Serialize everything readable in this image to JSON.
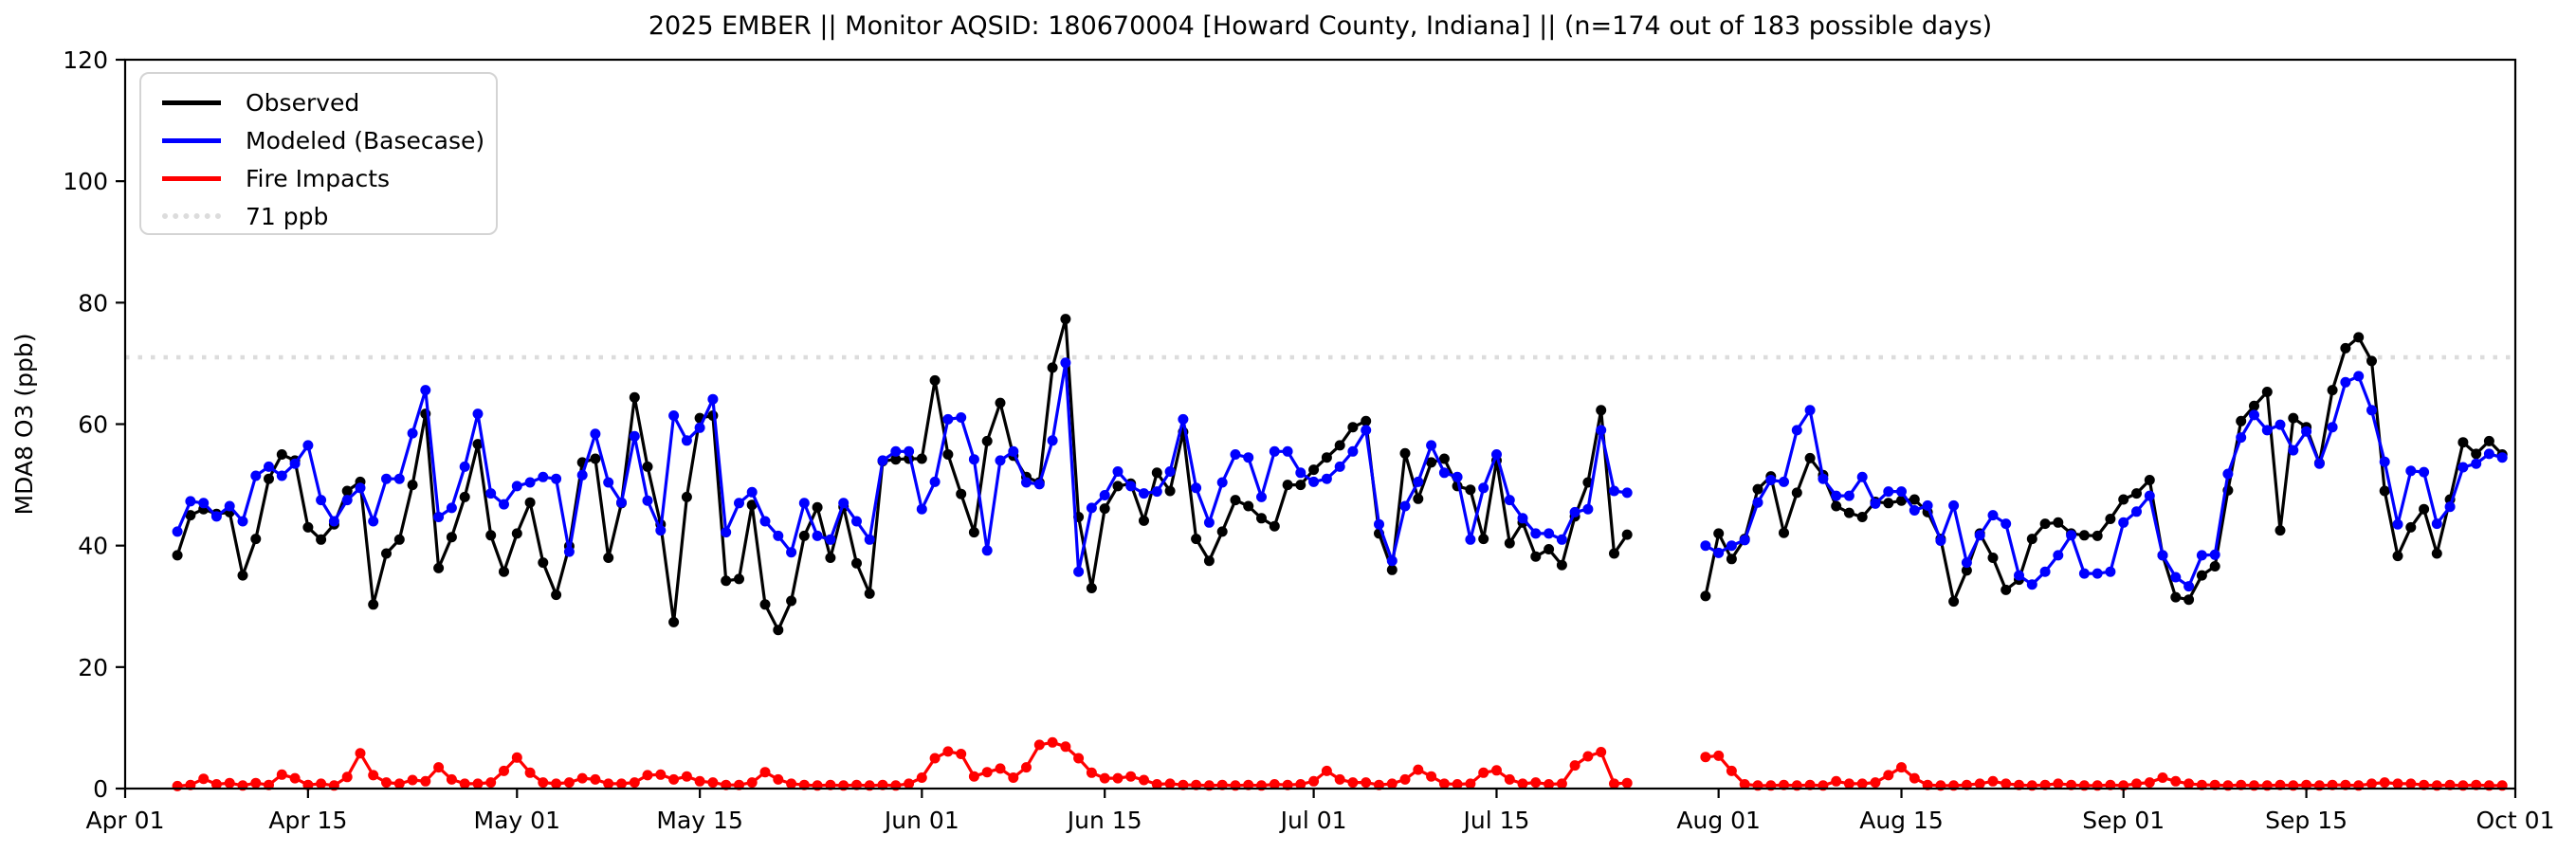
{
  "title": "2025 EMBER || Monitor AQSID: 180670004 [Howard County, Indiana] || (n=174 out of 183 possible days)",
  "legend": [
    {
      "label": "Observed",
      "color": "#000000",
      "style": "solid"
    },
    {
      "label": "Modeled (Basecase)",
      "color": "#0000ff",
      "style": "solid"
    },
    {
      "label": "Fire Impacts",
      "color": "#ff0000",
      "style": "solid"
    },
    {
      "label": "71 ppb",
      "color": "#dcdcdc",
      "style": "dotted"
    }
  ],
  "chart_data": {
    "type": "line",
    "title": "2025 EMBER || Monitor AQSID: 180670004 [Howard County, Indiana] || (n=174 out of 183 possible days)",
    "xlabel": "",
    "ylabel": "MDA8 O3 (ppb)",
    "ylim": [
      0,
      120
    ],
    "yticks": [
      0,
      20,
      40,
      60,
      80,
      100,
      120
    ],
    "xlim_days": [
      0,
      183
    ],
    "xticks": [
      {
        "label": "Apr 01",
        "day": 0
      },
      {
        "label": "Apr 15",
        "day": 14
      },
      {
        "label": "May 01",
        "day": 30
      },
      {
        "label": "May 15",
        "day": 44
      },
      {
        "label": "Jun 01",
        "day": 61
      },
      {
        "label": "Jun 15",
        "day": 75
      },
      {
        "label": "Jul 01",
        "day": 91
      },
      {
        "label": "Jul 15",
        "day": 105
      },
      {
        "label": "Aug 01",
        "day": 122
      },
      {
        "label": "Aug 15",
        "day": 136
      },
      {
        "label": "Sep 01",
        "day": 153
      },
      {
        "label": "Sep 15",
        "day": 167
      },
      {
        "label": "Oct 01",
        "day": 183
      }
    ],
    "reference_line": {
      "label": "71 ppb",
      "value": 71,
      "color": "#dcdcdc",
      "linestyle": "dotted"
    },
    "grid": false,
    "legend_position": "upper left",
    "x_unit": "days since Apr 01 (2025 ozone season, Apr 01 - Oct 01)",
    "day_start": 4,
    "series": [
      {
        "name": "Observed",
        "color": "#000000",
        "marker": "o",
        "values": [
          38.4,
          45,
          46,
          45.2,
          45.5,
          35.1,
          41.1,
          51,
          55,
          54,
          43,
          41,
          43.5,
          49,
          50.5,
          30.3,
          38.7,
          41,
          50,
          61.7,
          36.3,
          41.4,
          48,
          56.7,
          41.7,
          35.7,
          42,
          47.1,
          37.2,
          31.9,
          39.9,
          53.7,
          54.3,
          38,
          47,
          64.4,
          53,
          43.5,
          27.4,
          48,
          61,
          61.4,
          34.2,
          34.5,
          46.7,
          30.3,
          26.1,
          30.9,
          41.6,
          46.3,
          38,
          46.4,
          37.1,
          32.1,
          53.9,
          54.2,
          54.3,
          54.3,
          67.2,
          55,
          48.5,
          42.2,
          57.2,
          63.5,
          54.8,
          51.3,
          50.4,
          69.3,
          77.3,
          44.7,
          33,
          46.1,
          49.8,
          50.2,
          44.1,
          52,
          49,
          58.7,
          41.1,
          37.5,
          42.3,
          47.5,
          46.5,
          44.5,
          43.2,
          50,
          50,
          52.5,
          54.5,
          56.5,
          59.5,
          60.5,
          42,
          36,
          55.2,
          47.7,
          53.7,
          54.3,
          49.8,
          49.2,
          41.1,
          54,
          40.4,
          43.8,
          38.2,
          39.4,
          36.8,
          44.8,
          50.4,
          62.3,
          38.7,
          41.8,
          null,
          null,
          null,
          null,
          null,
          31.7,
          42,
          37.8,
          41.1,
          49.3,
          51.4,
          42.1,
          48.7,
          54.4,
          51.6,
          46.5,
          45.4,
          44.7,
          47.2,
          47,
          47.4,
          47.6,
          45.5,
          41.1,
          30.8,
          35.9,
          42,
          38,
          32.7,
          34.4,
          41.1,
          43.6,
          43.8,
          42,
          41.7,
          41.6,
          44.4,
          47.6,
          48.6,
          50.8,
          38.4,
          31.5,
          31.1,
          35.1,
          36.6,
          49.1,
          60.5,
          63,
          65.3,
          42.5,
          61,
          59.5,
          53.6,
          65.6,
          72.5,
          74.3,
          70.4,
          49,
          38.3,
          43,
          46,
          38.7,
          47.6,
          57,
          55.1,
          57.2,
          55
        ]
      },
      {
        "name": "Modeled (Basecase)",
        "color": "#0000ff",
        "marker": "o",
        "values": [
          42.3,
          47.3,
          47,
          44.8,
          46.5,
          44,
          51.5,
          53,
          51.5,
          53.5,
          56.5,
          47.5,
          44,
          47.5,
          49.5,
          44,
          51,
          51,
          58.5,
          65.6,
          44.7,
          46.2,
          53,
          61.7,
          48.6,
          46.8,
          49.8,
          50.4,
          51.3,
          51,
          39,
          51.6,
          58.4,
          50.4,
          47.1,
          58,
          47.4,
          42.5,
          61.4,
          57.3,
          59.4,
          64.1,
          42.2,
          47,
          48.8,
          44,
          41.6,
          38.9,
          47,
          41.6,
          41,
          47,
          44,
          41,
          54,
          55.5,
          55.5,
          46,
          50.5,
          60.8,
          61.1,
          54.2,
          39.2,
          54,
          55.5,
          50.4,
          50.1,
          57.3,
          70.1,
          35.7,
          46.2,
          48.3,
          52.2,
          49.8,
          48.6,
          48.9,
          52.2,
          60.8,
          49.5,
          43.8,
          50.4,
          55,
          54.5,
          48,
          55.5,
          55.5,
          52,
          50.5,
          51,
          53,
          55.5,
          59,
          43.5,
          37.5,
          46.5,
          50.5,
          56.5,
          52,
          51.3,
          41,
          49.5,
          55,
          47.5,
          44.5,
          42,
          42,
          41,
          45.5,
          46,
          59,
          49,
          48.7,
          null,
          null,
          null,
          null,
          null,
          40,
          38.8,
          40,
          40.9,
          47.1,
          50.8,
          50.5,
          59,
          62.3,
          51,
          48.2,
          48.2,
          51.3,
          46.9,
          48.9,
          48.9,
          45.8,
          46.6,
          40.8,
          46.6,
          37.2,
          41.7,
          45,
          43.6,
          35.1,
          33.6,
          35.7,
          38.4,
          41.7,
          35.4,
          35.4,
          35.7,
          43.8,
          45.6,
          48.2,
          38.4,
          34.8,
          33.3,
          38.4,
          38.5,
          51.8,
          57.8,
          61.5,
          59,
          59.9,
          55.7,
          58.8,
          53.5,
          59.5,
          66.9,
          67.9,
          62.3,
          53.8,
          43.5,
          52.3,
          52.1,
          43.6,
          46.4,
          52.9,
          53.5,
          55.1,
          54.5
        ]
      },
      {
        "name": "Fire Impacts",
        "color": "#ff0000",
        "marker": "o",
        "values": [
          0.4,
          0.6,
          1.6,
          0.7,
          0.9,
          0.5,
          0.9,
          0.6,
          2.3,
          1.7,
          0.6,
          0.8,
          0.5,
          1.9,
          5.8,
          2.2,
          1,
          0.8,
          1.4,
          1.2,
          3.5,
          1.5,
          0.8,
          0.8,
          1,
          2.9,
          5.1,
          2.6,
          1,
          0.8,
          1,
          1.7,
          1.5,
          0.8,
          0.8,
          1,
          2.2,
          2.3,
          1.5,
          2,
          1.2,
          1,
          0.6,
          0.6,
          1,
          2.7,
          1.5,
          0.8,
          0.6,
          0.5,
          0.6,
          0.5,
          0.6,
          0.5,
          0.6,
          0.5,
          0.8,
          1.8,
          5,
          6.1,
          5.7,
          2,
          2.7,
          3.3,
          1.8,
          3.5,
          7.2,
          7.6,
          6.9,
          5,
          2.6,
          1.7,
          1.7,
          2,
          1.4,
          0.7,
          0.8,
          0.6,
          0.6,
          0.5,
          0.6,
          0.5,
          0.6,
          0.5,
          0.7,
          0.6,
          0.7,
          1.2,
          2.9,
          1.5,
          1,
          1,
          0.6,
          0.8,
          1.5,
          3.1,
          2,
          0.8,
          0.7,
          0.8,
          2.6,
          3,
          1.5,
          0.8,
          1,
          0.7,
          0.8,
          3.8,
          5.3,
          6,
          0.8,
          0.9,
          null,
          null,
          null,
          null,
          null,
          5.2,
          5.4,
          2.9,
          0.7,
          0.5,
          0.5,
          0.6,
          0.5,
          0.6,
          0.5,
          1.2,
          0.8,
          0.8,
          1,
          2.2,
          3.5,
          1.7,
          0.6,
          0.5,
          0.5,
          0.6,
          0.8,
          1.2,
          0.8,
          0.6,
          0.5,
          0.6,
          0.8,
          0.6,
          0.5,
          0.5,
          0.6,
          0.5,
          0.8,
          1,
          1.8,
          1.2,
          0.8,
          0.6,
          0.6,
          0.5,
          0.6,
          0.5,
          0.5,
          0.6,
          0.5,
          0.6,
          0.5,
          0.6,
          0.6,
          0.5,
          0.8,
          1,
          0.8,
          0.8,
          0.6,
          0.5,
          0.6,
          0.5,
          0.6,
          0.5,
          0.5
        ]
      }
    ]
  }
}
